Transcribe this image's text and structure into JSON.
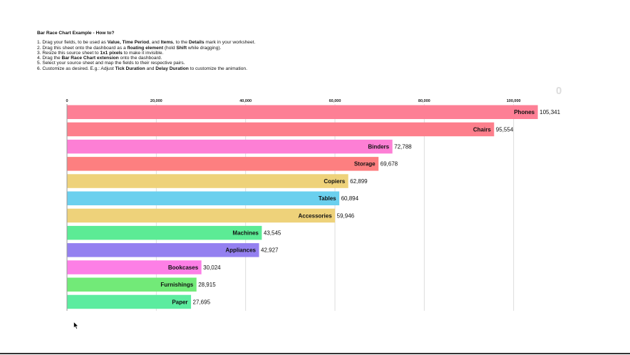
{
  "instructions": {
    "title": "Bar Race Chart Example - How to?",
    "steps": [
      [
        {
          "t": "1. Drag your fields, to be used as "
        },
        {
          "b": "Value, Time Period"
        },
        {
          "t": ", and "
        },
        {
          "b": "Items"
        },
        {
          "t": ", to the "
        },
        {
          "b": "Details"
        },
        {
          "t": " mark in your worksheet."
        }
      ],
      [
        {
          "t": "2. Drag this sheet onto the dashboard as a "
        },
        {
          "b": "floating element"
        },
        {
          "t": " (hold "
        },
        {
          "b": "Shift"
        },
        {
          "t": " while dragging)."
        }
      ],
      [
        {
          "t": "3. Resize this source sheet to "
        },
        {
          "b": "1x1 pixels"
        },
        {
          "t": " to make it invisible."
        }
      ],
      [
        {
          "t": "4. Drag the "
        },
        {
          "b": "Bar Race Chart extension"
        },
        {
          "t": " onto the dashboard."
        }
      ],
      [
        {
          "t": "5. Select your source sheet and map the fields to their respective pairs."
        }
      ],
      [
        {
          "t": "6. Customize as desired. E.g.: Adjust "
        },
        {
          "b": "Tick Duration"
        },
        {
          "t": " and "
        },
        {
          "b": "Delay Duration"
        },
        {
          "t": " to customize the animation."
        }
      ]
    ]
  },
  "counter": "0",
  "chart_data": {
    "type": "bar",
    "orientation": "horizontal",
    "xlim": [
      0,
      105341
    ],
    "x_ticks": [
      0,
      20000,
      40000,
      60000,
      80000,
      100000
    ],
    "x_tick_labels": [
      "0",
      "20,000",
      "40,000",
      "60,000",
      "80,000",
      "100,000"
    ],
    "grid": true,
    "categories": [
      "Phones",
      "Chairs",
      "Binders",
      "Storage",
      "Copiers",
      "Tables",
      "Accessories",
      "Machines",
      "Appliances",
      "Bookcases",
      "Furnishings",
      "Paper"
    ],
    "values": [
      105341,
      95554,
      72788,
      69678,
      62899,
      60894,
      59946,
      43545,
      42927,
      30024,
      28915,
      27695
    ],
    "value_labels": [
      "105,341",
      "95,554",
      "72,788",
      "69,678",
      "62,899",
      "60,894",
      "59,946",
      "43,545",
      "42,927",
      "30,024",
      "28,915",
      "27,695"
    ],
    "colors": [
      "#fd7f95",
      "#fd7f8c",
      "#fd7fd5",
      "#fd7f80",
      "#eed27a",
      "#6bd0ee",
      "#eed27a",
      "#5ceb95",
      "#9480f0",
      "#fd7fe6",
      "#72ea78",
      "#5cec9f"
    ]
  }
}
